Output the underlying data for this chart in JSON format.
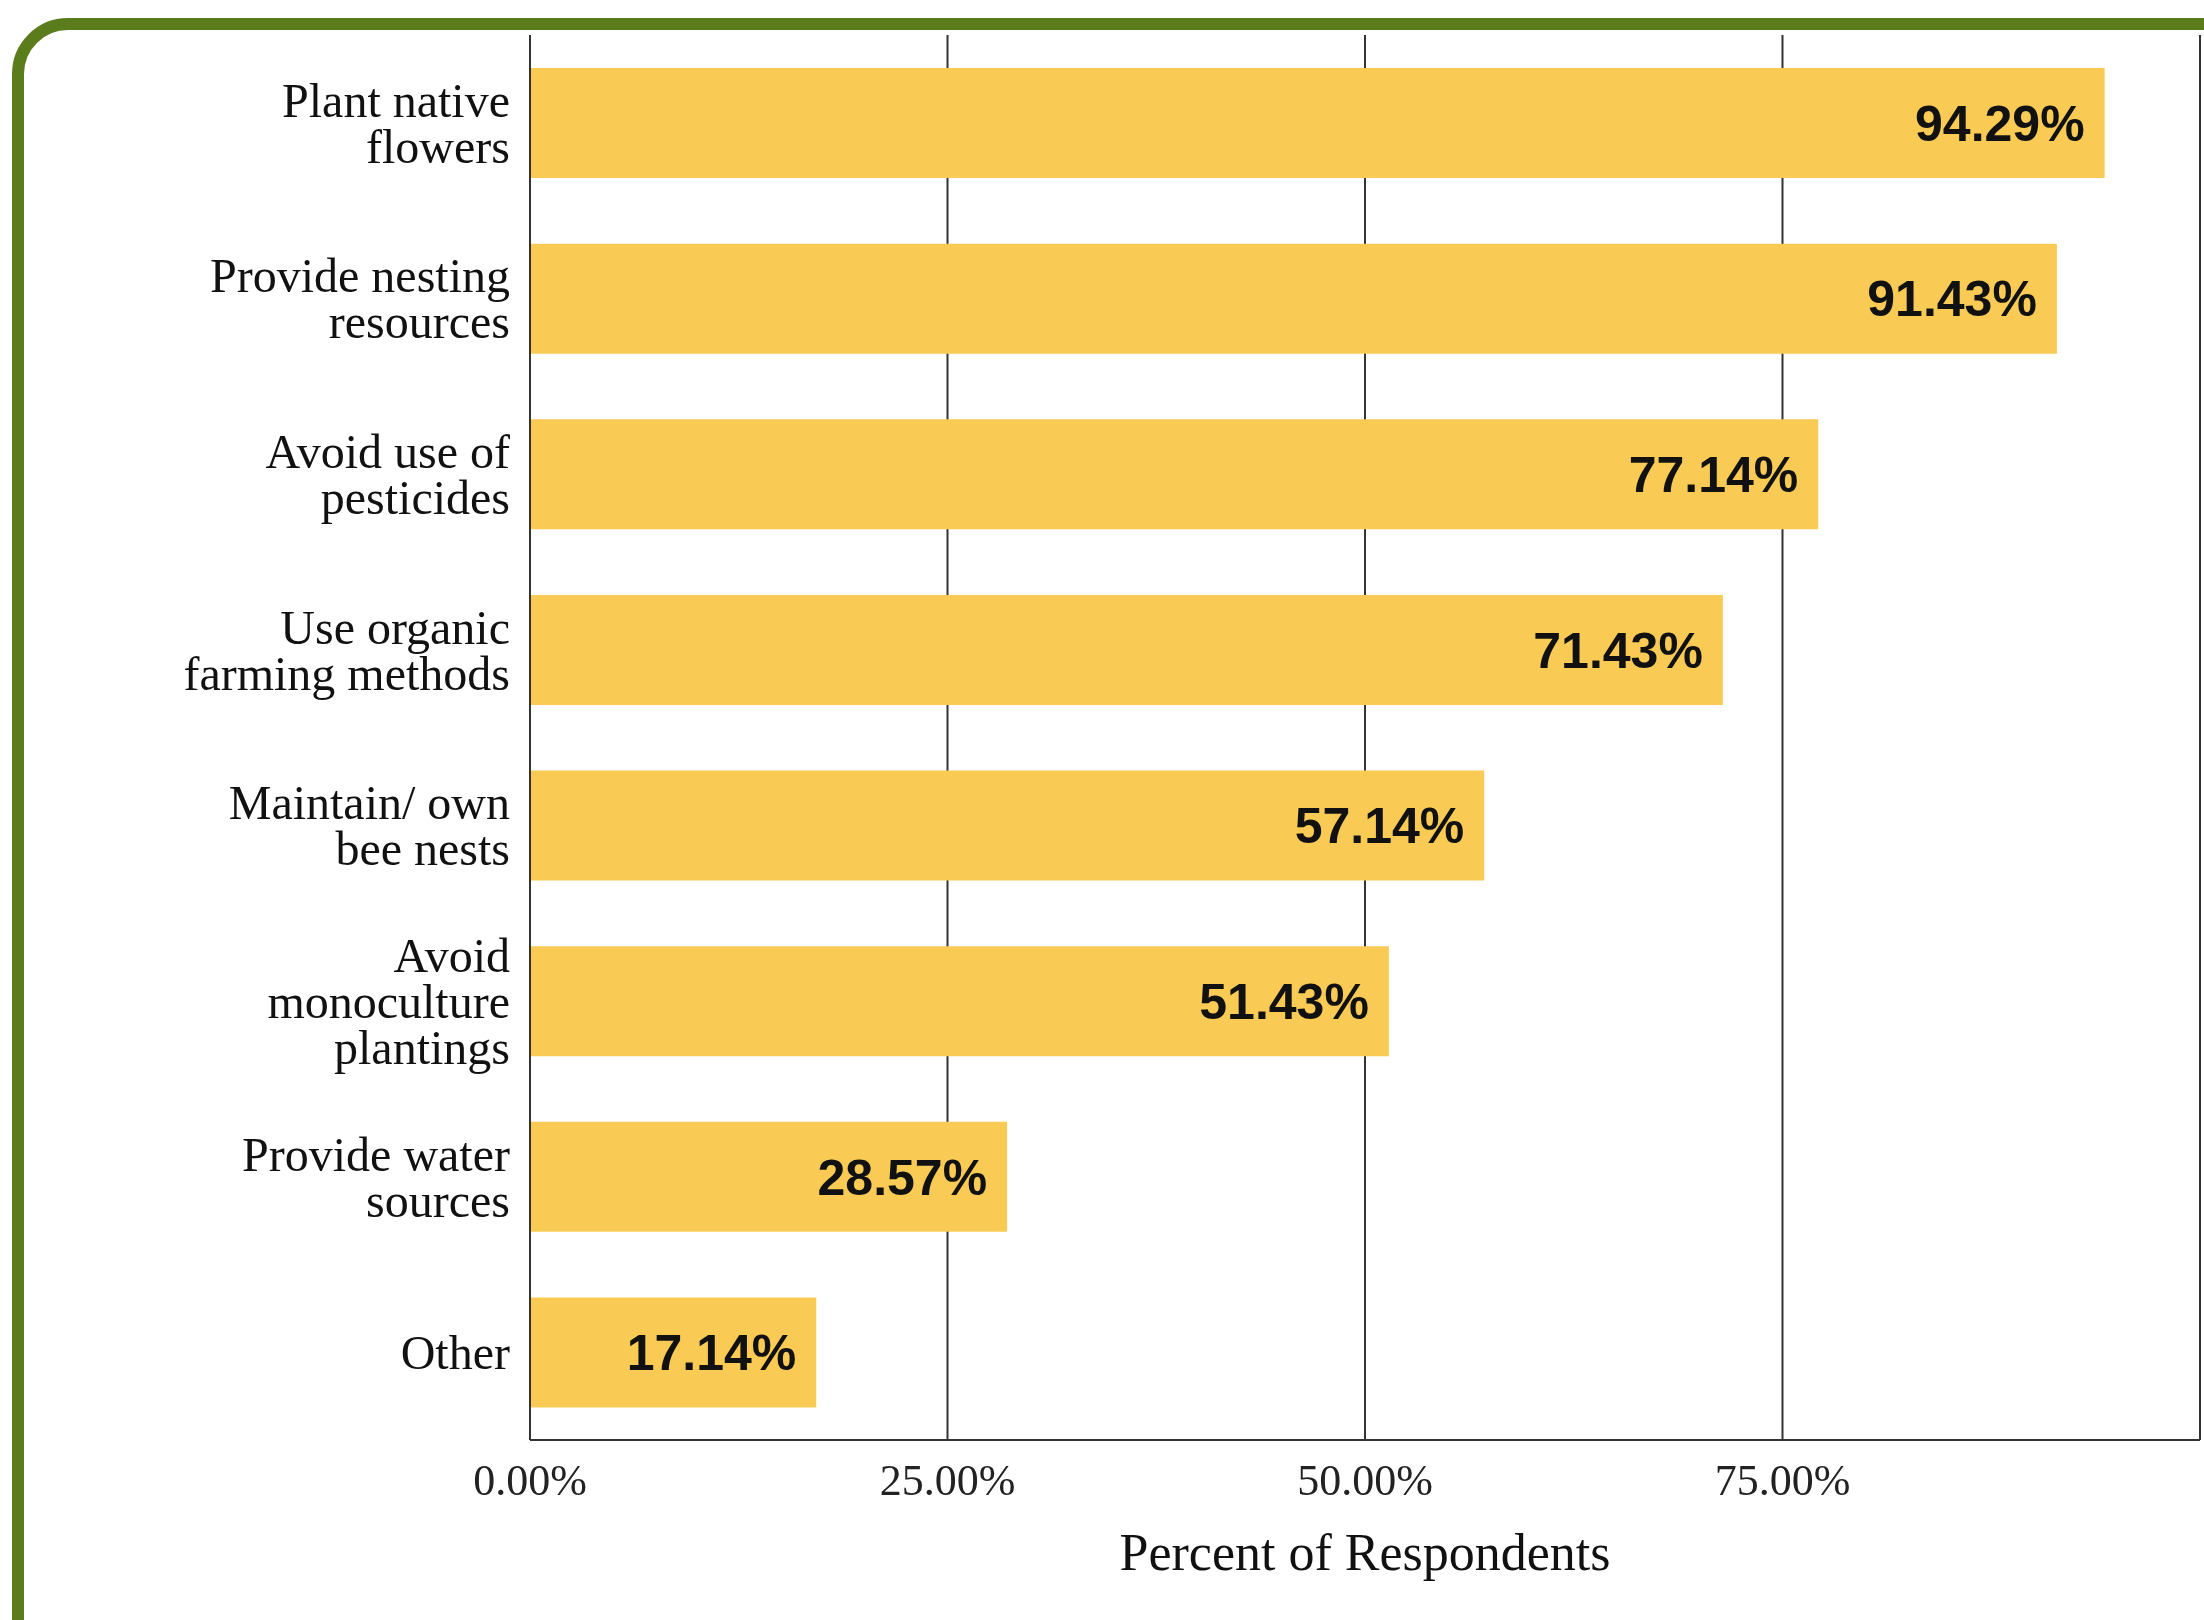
{
  "chart_data": {
    "type": "bar",
    "orientation": "horizontal",
    "xlabel": "Percent of Respondents",
    "categories": [
      "Plant native flowers",
      "Provide nesting resources",
      "Avoid use of pesticides",
      "Use organic farming methods",
      "Maintain/ own bee nests",
      "Avoid monoculture plantings",
      "Provide water sources",
      "Other"
    ],
    "values": [
      94.29,
      91.43,
      77.14,
      71.43,
      57.14,
      51.43,
      28.57,
      17.14
    ],
    "value_labels": [
      "94.29%",
      "91.43%",
      "77.14%",
      "71.43%",
      "57.14%",
      "51.43%",
      "28.57%",
      "17.14%"
    ],
    "color": "#f9cb55",
    "xlim": [
      0,
      100
    ],
    "xticks": [
      {
        "value": 0,
        "label": "0.00%"
      },
      {
        "value": 25,
        "label": "25.00%"
      },
      {
        "value": 50,
        "label": "50.00%"
      },
      {
        "value": 75,
        "label": "75.00%"
      }
    ],
    "grid": "x",
    "legend": false
  }
}
